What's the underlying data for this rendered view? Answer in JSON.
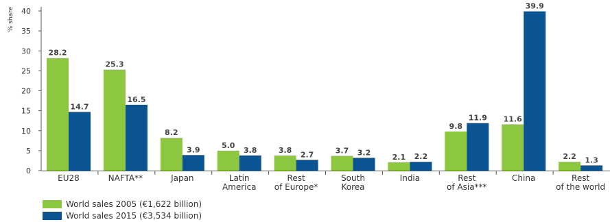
{
  "chart_data": {
    "type": "bar",
    "ylabel": "% share",
    "ylim": [
      0,
      40
    ],
    "yticks": [
      0,
      5,
      10,
      15,
      20,
      25,
      30,
      35,
      40
    ],
    "categories": [
      [
        "EU28"
      ],
      [
        "NAFTA**"
      ],
      [
        "Japan"
      ],
      [
        "Latin",
        "America"
      ],
      [
        "Rest",
        "of Europe*"
      ],
      [
        "South",
        "Korea"
      ],
      [
        "India"
      ],
      [
        "Rest",
        "of Asia***"
      ],
      [
        "China"
      ],
      [
        "Rest",
        "of the world"
      ]
    ],
    "series": [
      {
        "name": "World sales 2005 (€1,622 billion)",
        "color": "#8dc63f",
        "values": [
          28.2,
          25.3,
          8.2,
          5.0,
          3.8,
          3.7,
          2.1,
          9.8,
          11.6,
          2.2
        ],
        "labels": [
          "28.2",
          "25.3",
          "8.2",
          "5.0",
          "3.8",
          "3.7",
          "2.1",
          "9.8",
          "11.6",
          "2.2"
        ]
      },
      {
        "name": "World sales 2015 (€3,534 billion)",
        "color": "#0b5494",
        "values": [
          14.7,
          16.5,
          3.9,
          3.8,
          2.7,
          3.2,
          2.2,
          11.9,
          39.9,
          1.3
        ],
        "labels": [
          "14.7",
          "16.5",
          "3.9",
          "3.8",
          "2.7",
          "3.2",
          "2.2",
          "11.9",
          "39.9",
          "1.3"
        ]
      }
    ],
    "grid": false,
    "legend_position": "bottom-left"
  }
}
